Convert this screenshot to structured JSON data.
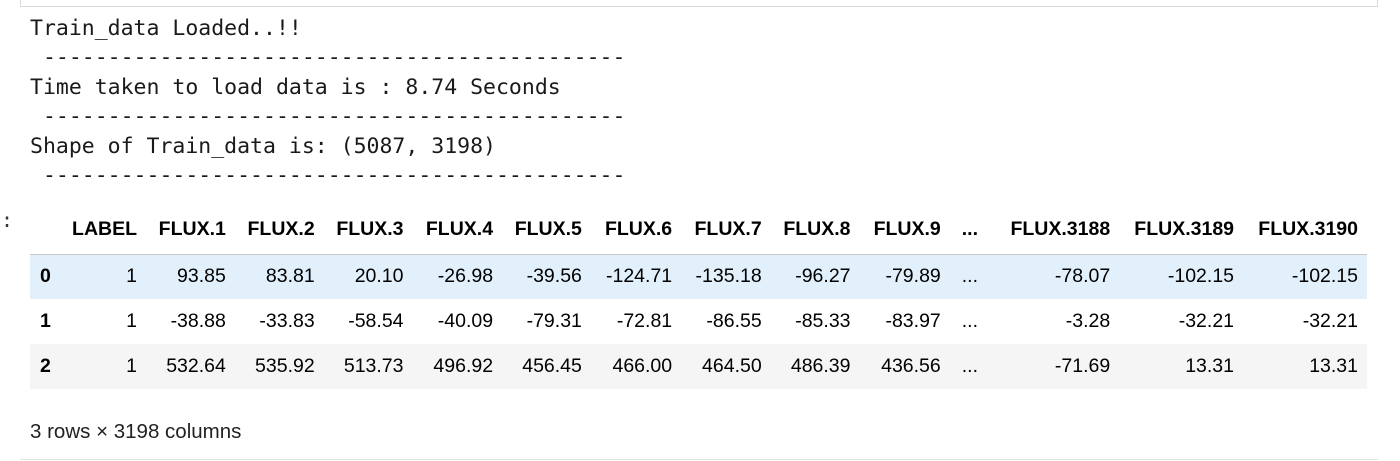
{
  "output_prompt": ":",
  "stdout_lines": [
    "Train_data Loaded..!!",
    " ---------------------------------------------",
    "Time taken to load data is : 8.74 Seconds",
    " ---------------------------------------------",
    "Shape of Train_data is: (5087, 3198)",
    " ---------------------------------------------"
  ],
  "dataframe": {
    "columns": [
      "LABEL",
      "FLUX.1",
      "FLUX.2",
      "FLUX.3",
      "FLUX.4",
      "FLUX.5",
      "FLUX.6",
      "FLUX.7",
      "FLUX.8",
      "FLUX.9",
      "...",
      "FLUX.3188",
      "FLUX.3189",
      "FLUX.3190"
    ],
    "rows": [
      {
        "index": "0",
        "cells": [
          "1",
          "93.85",
          "83.81",
          "20.10",
          "-26.98",
          "-39.56",
          "-124.71",
          "-135.18",
          "-96.27",
          "-79.89",
          "...",
          "-78.07",
          "-102.15",
          "-102.15"
        ]
      },
      {
        "index": "1",
        "cells": [
          "1",
          "-38.88",
          "-33.83",
          "-58.54",
          "-40.09",
          "-79.31",
          "-72.81",
          "-86.55",
          "-85.33",
          "-83.97",
          "...",
          "-3.28",
          "-32.21",
          "-32.21"
        ]
      },
      {
        "index": "2",
        "cells": [
          "1",
          "532.64",
          "535.92",
          "513.73",
          "496.92",
          "456.45",
          "466.00",
          "464.50",
          "486.39",
          "436.56",
          "...",
          "-71.69",
          "13.31",
          "13.31"
        ]
      }
    ],
    "shape_text": "3 rows × 3198 columns"
  }
}
